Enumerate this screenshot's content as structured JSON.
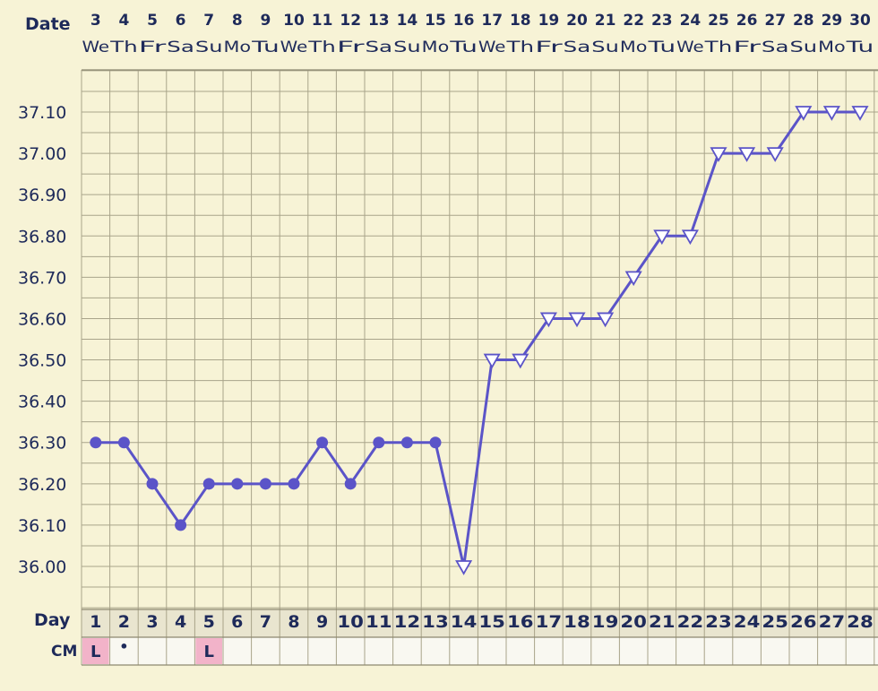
{
  "chart_data": {
    "type": "line",
    "date_label": "Date",
    "day_label": "Day",
    "cm_label": "CM",
    "dates": [
      "3",
      "4",
      "5",
      "6",
      "7",
      "8",
      "9",
      "10",
      "11",
      "12",
      "13",
      "14",
      "15",
      "16",
      "17",
      "18",
      "19",
      "20",
      "21",
      "22",
      "23",
      "24",
      "25",
      "26",
      "27",
      "28",
      "29",
      "30"
    ],
    "weekdays": [
      "We",
      "Th",
      "Fr",
      "Sa",
      "Su",
      "Mo",
      "Tu",
      "We",
      "Th",
      "Fr",
      "Sa",
      "Su",
      "Mo",
      "Tu",
      "We",
      "Th",
      "Fr",
      "Sa",
      "Su",
      "Mo",
      "Tu",
      "We",
      "Th",
      "Fr",
      "Sa",
      "Su",
      "Mo",
      "Tu"
    ],
    "days": [
      "1",
      "2",
      "3",
      "4",
      "5",
      "6",
      "7",
      "8",
      "9",
      "10",
      "11",
      "12",
      "13",
      "14",
      "15",
      "16",
      "17",
      "18",
      "19",
      "20",
      "21",
      "22",
      "23",
      "24",
      "25",
      "26",
      "27",
      "28"
    ],
    "cm": [
      "L",
      "•",
      "",
      "",
      "L",
      "",
      "",
      "",
      "",
      "",
      "",
      "",
      "",
      "",
      "",
      "",
      "",
      "",
      "",
      "",
      "",
      "",
      "",
      "",
      "",
      "",
      "",
      ""
    ],
    "cm_highlight_color": "#f2b3c9",
    "y_ticks": [
      "37.10",
      "37.00",
      "36.90",
      "36.80",
      "36.70",
      "36.60",
      "36.50",
      "36.40",
      "36.30",
      "36.20",
      "36.10",
      "36.00"
    ],
    "ylim": [
      35.93,
      37.2
    ],
    "values": [
      36.3,
      36.3,
      36.2,
      36.1,
      36.2,
      36.2,
      36.2,
      36.2,
      36.3,
      36.2,
      36.3,
      36.3,
      36.3,
      36.0,
      36.5,
      36.5,
      36.6,
      36.6,
      36.6,
      36.7,
      36.8,
      36.8,
      37.0,
      37.0,
      37.0,
      37.1,
      37.1,
      37.1
    ],
    "markers": [
      "dot",
      "dot",
      "dot",
      "dot",
      "dot",
      "dot",
      "dot",
      "dot",
      "dot",
      "dot",
      "dot",
      "dot",
      "dot",
      "triangle-down",
      "triangle-down",
      "triangle-down",
      "triangle-down",
      "triangle-down",
      "triangle-down",
      "triangle-down",
      "triangle-down",
      "triangle-down",
      "triangle-down",
      "triangle-down",
      "triangle-down",
      "triangle-down",
      "triangle-down",
      "triangle-down"
    ],
    "line_color": "#5b54c8",
    "grid": true,
    "grid_color": "#a9a48a",
    "background": "#f7f3d6"
  }
}
